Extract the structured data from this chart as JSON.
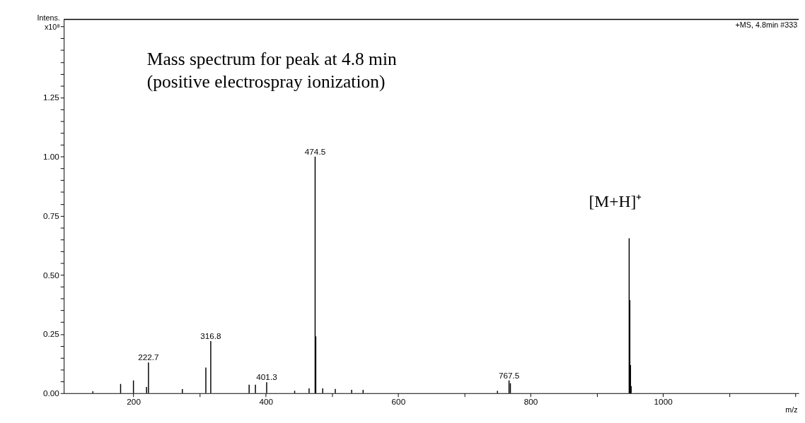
{
  "chart_data": {
    "type": "bar",
    "x": [
      138.7,
      180.6,
      200,
      219.8,
      222.7,
      273.9,
      309.4,
      316.8,
      374.8,
      384.3,
      401.3,
      443.6,
      465.4,
      474.5,
      475.5,
      486,
      505,
      529.7,
      547,
      750,
      767.5,
      769.5,
      949,
      950,
      951,
      952
    ],
    "values": [
      0.008,
      0.039,
      0.054,
      0.026,
      0.13,
      0.017,
      0.108,
      0.22,
      0.036,
      0.036,
      0.046,
      0.01,
      0.02,
      1.0,
      0.24,
      0.02,
      0.018,
      0.014,
      0.014,
      0.01,
      0.054,
      0.042,
      0.655,
      0.393,
      0.119,
      0.03
    ],
    "color": "#000000",
    "xlabel": "m/z",
    "ylabel": "Intens. x10⁸",
    "xlim": [
      100,
      1200
    ],
    "ylim": [
      0,
      1.58
    ],
    "xticks": [
      200,
      {
        "value": 300,
        "label": null
      },
      400,
      {
        "value": 500,
        "label": null
      },
      600,
      {
        "value": 700,
        "label": null
      },
      800,
      {
        "value": 900,
        "label": null
      },
      1000,
      {
        "value": 1100,
        "label": null
      },
      {
        "value": 1200,
        "label": null
      }
    ],
    "yticks": [
      {
        "value": 0,
        "label": "0.00"
      },
      {
        "value": 0.05,
        "label": null
      },
      {
        "value": 0.1,
        "label": null
      },
      {
        "value": 0.15,
        "label": null
      },
      {
        "value": 0.2,
        "label": null
      },
      {
        "value": 0.25,
        "label": "0.25"
      },
      {
        "value": 0.3,
        "label": null
      },
      {
        "value": 0.35,
        "label": null
      },
      {
        "value": 0.4,
        "label": null
      },
      {
        "value": 0.45,
        "label": null
      },
      {
        "value": 0.5,
        "label": "0.50"
      },
      {
        "value": 0.55,
        "label": null
      },
      {
        "value": 0.6,
        "label": null
      },
      {
        "value": 0.65,
        "label": null
      },
      {
        "value": 0.7,
        "label": null
      },
      {
        "value": 0.75,
        "label": "0.75"
      },
      {
        "value": 0.8,
        "label": null
      },
      {
        "value": 0.85,
        "label": null
      },
      {
        "value": 0.9,
        "label": null
      },
      {
        "value": 0.95,
        "label": null
      },
      {
        "value": 1.0,
        "label": "1.00"
      },
      {
        "value": 1.05,
        "label": null
      },
      {
        "value": 1.1,
        "label": null
      },
      {
        "value": 1.15,
        "label": null
      },
      {
        "value": 1.2,
        "label": null
      },
      {
        "value": 1.25,
        "label": "1.25"
      },
      {
        "value": 1.3,
        "label": null
      },
      {
        "value": 1.35,
        "label": null
      },
      {
        "value": 1.4,
        "label": null
      },
      {
        "value": 1.45,
        "label": null
      },
      {
        "value": 1.5,
        "label": null
      },
      {
        "value": 1.55,
        "label": null
      }
    ],
    "grid": false,
    "annotations": [
      "Mass spectrum for peak at 4.8 min",
      "(positive electrospray ionization)",
      "+MS, 4.8min #333",
      {
        "text": "222.7",
        "x": 222.7,
        "y": 0.13
      },
      {
        "text": "316.8",
        "x": 316.8,
        "y": 0.22
      },
      {
        "text": "401.3",
        "x": 401.3,
        "y": 0.046
      },
      {
        "text": "474.5",
        "x": 474.5,
        "y": 1.0
      },
      {
        "text": "767.5",
        "x": 767.5,
        "y": 0.054
      },
      {
        "text": "[M+H]⁺",
        "x": 949,
        "y": 0.655
      }
    ]
  }
}
